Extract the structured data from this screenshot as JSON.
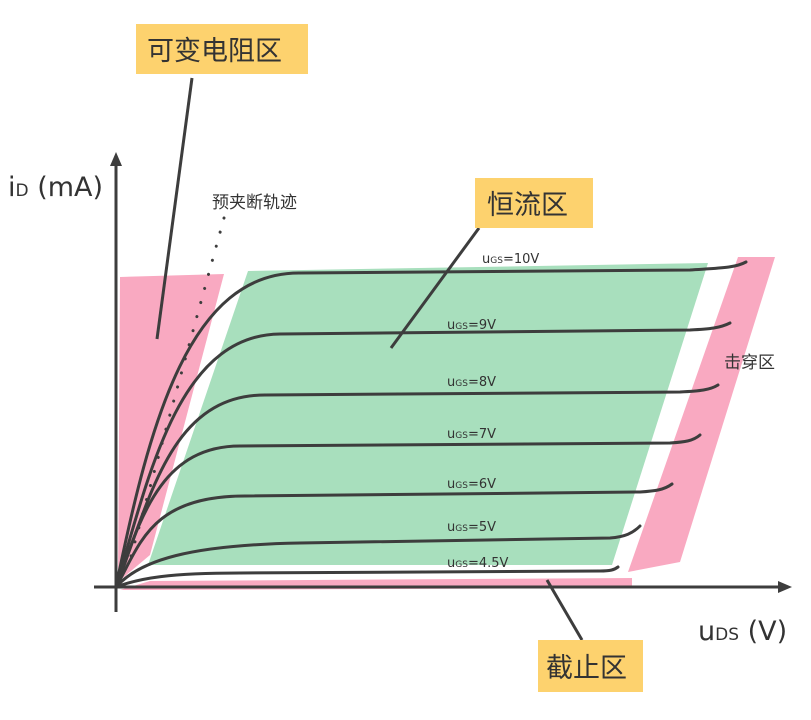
{
  "axes": {
    "y_label_main": "i",
    "y_label_sub": "D",
    "y_label_unit": " (mA)",
    "x_label_main": "u",
    "x_label_sub": "DS",
    "x_label_unit": " (V)"
  },
  "regions": {
    "variable_resistance": "可变电阻区",
    "constant_current": "恒流区",
    "cutoff": "截止区",
    "breakdown": "击穿区",
    "pinch_off_trace": "预夹断轨迹"
  },
  "curves": [
    {
      "prefix": "u",
      "sub": "GS",
      "value": "=10V"
    },
    {
      "prefix": "u",
      "sub": "GS",
      "value": "=9V"
    },
    {
      "prefix": "u",
      "sub": "GS",
      "value": "=8V"
    },
    {
      "prefix": "u",
      "sub": "GS",
      "value": "=7V"
    },
    {
      "prefix": "u",
      "sub": "GS",
      "value": "=6V"
    },
    {
      "prefix": "u",
      "sub": "GS",
      "value": "=5V"
    },
    {
      "prefix": "u",
      "sub": "GS",
      "value": "=4.5V"
    }
  ],
  "colors": {
    "variable_resistance": "#f9a9c1",
    "constant_current": "#a8dfbd",
    "breakdown": "#f9a9c1",
    "cutoff": "#f9a9c1",
    "label_box": "#fdd26e",
    "line": "#3d3d3d"
  }
}
